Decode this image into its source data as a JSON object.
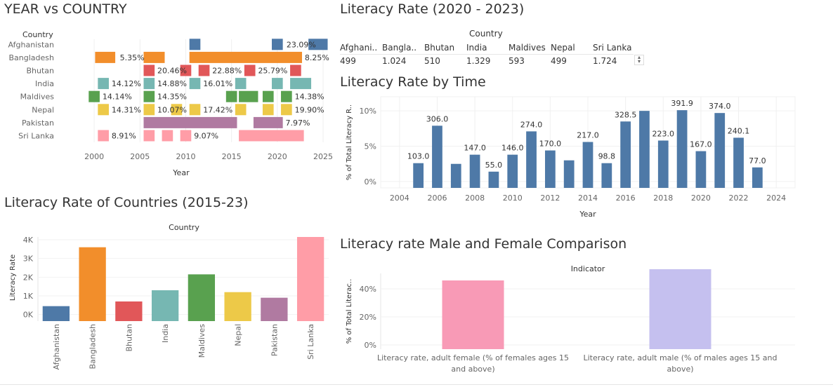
{
  "titles": {
    "gantt": "YEAR vs COUNTRY",
    "table": "Literacy Rate (2020 - 2023)",
    "time": "Literacy Rate by Time",
    "countries": "Literacy Rate of Countries (2015-23)",
    "gender": "Literacy rate Male and Female Comparison"
  },
  "colors": {
    "Afghanistan": "#4e79a7",
    "Bangladesh": "#f28e2b",
    "Bhutan": "#e15759",
    "India": "#76b7b2",
    "Maldives": "#59a14f",
    "Nepal": "#edc948",
    "Pakistan": "#b07aa1",
    "Sri Lanka": "#ff9da7",
    "female": "#f89ab6",
    "male": "#c5c0ef",
    "time": "#4e79a7"
  },
  "chart_data": [
    {
      "id": "gantt",
      "type": "gantt",
      "title": "YEAR vs COUNTRY",
      "column_header": "Country",
      "xlabel": "Year",
      "xlim": [
        1997,
        2025
      ],
      "xticks": [
        2000,
        2005,
        2010,
        2015,
        2020,
        2025
      ],
      "rows": [
        {
          "country": "Afghanistan",
          "bars": [
            [
              2010.4,
              2011.6
            ],
            [
              2019.4,
              2020.6
            ],
            [
              2023.4,
              2025.5
            ]
          ],
          "labels": [
            {
              "year": 2021,
              "text": "23.09%"
            }
          ]
        },
        {
          "country": "Bangladesh",
          "bars": [
            [
              2000.1,
              2002.3
            ],
            [
              2005.4,
              2007.7
            ],
            [
              2010.4,
              2022.7
            ]
          ],
          "labels": [
            {
              "year": 2002.8,
              "text": "5.35%"
            },
            {
              "year": 2023.0,
              "text": "8.25%"
            }
          ]
        },
        {
          "country": "Bhutan",
          "bars": [
            [
              2005.4,
              2006.6
            ],
            [
              2009.4,
              2010.6
            ],
            [
              2011.4,
              2012.6
            ],
            [
              2016.4,
              2017.6
            ],
            [
              2021.4,
              2022.6
            ]
          ],
          "labels": [
            {
              "year": 2006.9,
              "text": "20.46%"
            },
            {
              "year": 2012.9,
              "text": "22.88%"
            },
            {
              "year": 2017.9,
              "text": "25.79%"
            }
          ]
        },
        {
          "country": "India",
          "bars": [
            [
              2000.4,
              2001.6
            ],
            [
              2005.4,
              2006.6
            ],
            [
              2010.4,
              2011.6
            ],
            [
              2015.4,
              2016.6
            ],
            [
              2019.4,
              2020.6
            ],
            [
              2021.4,
              2023.7
            ]
          ],
          "labels": [
            {
              "year": 2001.9,
              "text": "14.12%"
            },
            {
              "year": 2006.9,
              "text": "14.88%"
            },
            {
              "year": 2011.9,
              "text": "16.01%"
            }
          ]
        },
        {
          "country": "Maldives",
          "bars": [
            [
              1999.4,
              2000.6
            ],
            [
              2005.4,
              2006.6
            ],
            [
              2014.4,
              2015.6
            ],
            [
              2015.8,
              2017.9
            ],
            [
              2018.4,
              2019.6
            ],
            [
              2020.4,
              2021.6
            ]
          ],
          "labels": [
            {
              "year": 2000.9,
              "text": "14.14%"
            },
            {
              "year": 2006.9,
              "text": "14.35%"
            },
            {
              "year": 2021.9,
              "text": "14.38%"
            }
          ]
        },
        {
          "country": "Nepal",
          "bars": [
            [
              2000.4,
              2001.6
            ],
            [
              2005.4,
              2006.6
            ],
            [
              2008.4,
              2009.6
            ],
            [
              2010.4,
              2011.6
            ],
            [
              2015.4,
              2016.6
            ],
            [
              2018.4,
              2019.6
            ],
            [
              2020.4,
              2021.6
            ]
          ],
          "labels": [
            {
              "year": 2001.9,
              "text": "14.31%"
            },
            {
              "year": 2006.9,
              "text": "10.07%"
            },
            {
              "year": 2011.9,
              "text": "17.42%"
            },
            {
              "year": 2021.9,
              "text": "19.90%"
            }
          ]
        },
        {
          "country": "Pakistan",
          "bars": [
            [
              2005.4,
              2015.6
            ],
            [
              2017.4,
              2020.6
            ]
          ],
          "labels": [
            {
              "year": 2020.9,
              "text": "7.97%"
            }
          ]
        },
        {
          "country": "Sri Lanka",
          "bars": [
            [
              2000.4,
              2001.6
            ],
            [
              2005.4,
              2006.6
            ],
            [
              2007.4,
              2008.6
            ],
            [
              2009.4,
              2010.6
            ],
            [
              2015.8,
              2022.9
            ]
          ],
          "labels": [
            {
              "year": 2001.9,
              "text": "8.91%"
            },
            {
              "year": 2010.9,
              "text": "9.07%"
            }
          ]
        }
      ]
    },
    {
      "id": "table",
      "type": "table",
      "title": "Literacy Rate (2020 - 2023)",
      "column_header": "Country",
      "columns": [
        "Afghani..",
        "Bangla..",
        "Bhutan",
        "India",
        "Maldives",
        "Nepal",
        "Sri Lanka"
      ],
      "values": [
        "499",
        "1.024",
        "510",
        "1.329",
        "593",
        "499",
        "1.724"
      ]
    },
    {
      "id": "time",
      "type": "bar",
      "title": "Literacy Rate by Time",
      "xlabel": "Year",
      "ylabel": "% of Total Literacy R..",
      "xlim": [
        2003,
        2025
      ],
      "ylim": [
        -0.9,
        12.0
      ],
      "xticks": [
        2004,
        2006,
        2008,
        2010,
        2012,
        2014,
        2016,
        2018,
        2020,
        2022,
        2024
      ],
      "yticks": [
        {
          "v": 0,
          "label": "0%"
        },
        {
          "v": 5,
          "label": "5%"
        },
        {
          "v": 10,
          "label": "10%"
        }
      ],
      "x": [
        2005,
        2006,
        2007,
        2008,
        2009,
        2010,
        2011,
        2012,
        2013,
        2014,
        2015,
        2016,
        2017,
        2018,
        2019,
        2020,
        2021,
        2022,
        2023
      ],
      "values": [
        2.6,
        7.9,
        2.5,
        3.8,
        1.4,
        3.8,
        7.1,
        4.4,
        3.0,
        5.6,
        2.6,
        8.5,
        10.0,
        5.8,
        10.1,
        4.3,
        9.7,
        6.2,
        2.0
      ],
      "data_labels": {
        "2005": "103.0",
        "2006": "306.0",
        "2008": "147.0",
        "2009": "55.0",
        "2010": "146.0",
        "2011": "274.0",
        "2012": "170.0",
        "2014": "217.0",
        "2015": "98.8",
        "2016": "328.5",
        "2018": "223.0",
        "2019": "391.9",
        "2020": "167.0",
        "2021": "374.0",
        "2022": "240.1",
        "2023": "77.0"
      }
    },
    {
      "id": "countries",
      "type": "bar",
      "title": "Literacy Rate of Countries (2015-23)",
      "column_header": "Country",
      "ylabel": "Literacy Rate",
      "ylim": [
        -350,
        4150
      ],
      "yticks": [
        {
          "v": 0,
          "label": "0K"
        },
        {
          "v": 1000,
          "label": "1K"
        },
        {
          "v": 2000,
          "label": "2K"
        },
        {
          "v": 3000,
          "label": "3K"
        },
        {
          "v": 4000,
          "label": "4K"
        }
      ],
      "categories": [
        "Afghanistan",
        "Bangladesh",
        "Bhutan",
        "India",
        "Maldives",
        "Nepal",
        "Pakistan",
        "Sri Lanka"
      ],
      "values": [
        450,
        3600,
        700,
        1300,
        2150,
        1200,
        900,
        4150
      ]
    },
    {
      "id": "gender",
      "type": "bar",
      "title": "Literacy rate Male and Female Comparison",
      "column_header": "Indicator",
      "ylabel": "% of Total Literac..",
      "ylim": [
        -3,
        51
      ],
      "yticks": [
        {
          "v": 0,
          "label": "0%"
        },
        {
          "v": 20,
          "label": "20%"
        },
        {
          "v": 40,
          "label": "40%"
        }
      ],
      "categories": [
        "Literacy rate, adult female (% of females ages 15 and above)",
        "Literacy rate, adult male (% of males ages 15 and above)"
      ],
      "category_lines": [
        [
          "Literacy rate, adult female (% of females ages 15",
          "and above)"
        ],
        [
          "Literacy rate, adult male (% of males ages 15 and",
          "above)"
        ]
      ],
      "values": [
        46,
        54
      ]
    }
  ]
}
